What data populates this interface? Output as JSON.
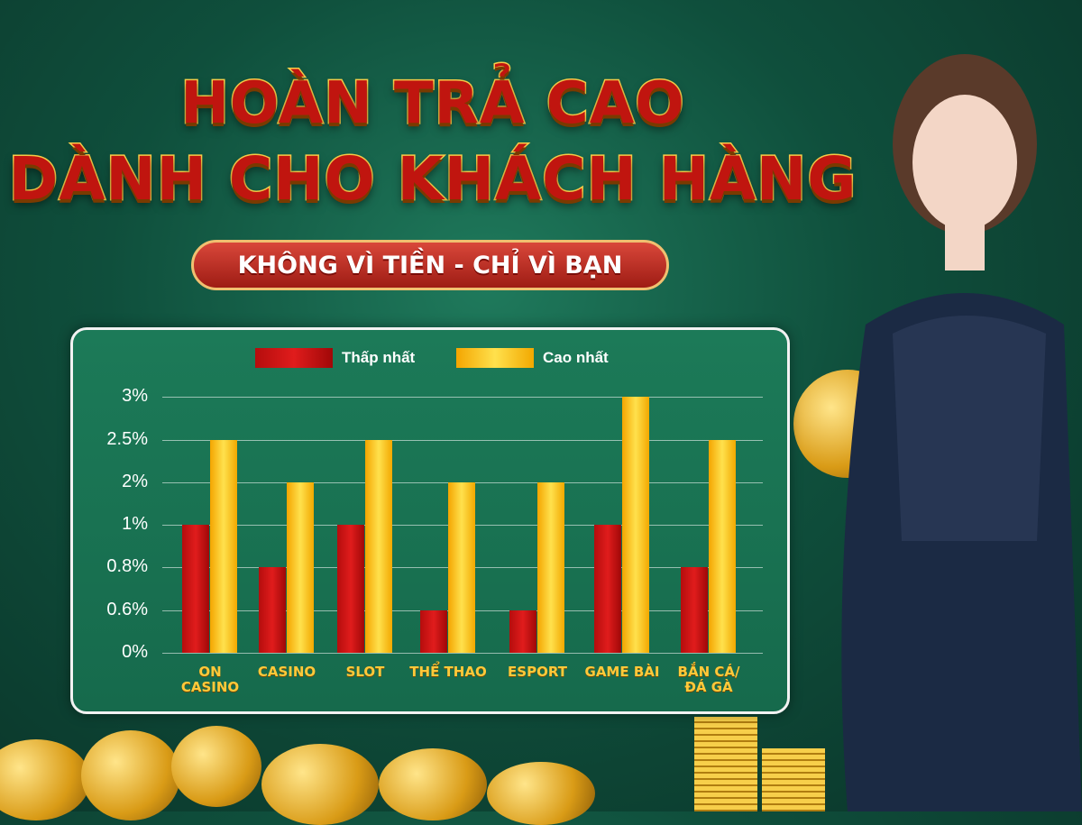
{
  "header": {
    "title_line1": "HOÀN TRẢ CAO",
    "title_line2": "DÀNH CHO KHÁCH HÀNG",
    "ribbon": "KHÔNG VÌ TIỀN - CHỈ VÌ BẠN"
  },
  "colors": {
    "min_series": "#d01414",
    "max_series": "#ffc61a",
    "background": "#0f4f3c"
  },
  "chart_data": {
    "type": "bar",
    "categories": [
      "ON CASINO",
      "CASINO",
      "SLOT",
      "THỂ THAO",
      "ESPORT",
      "GAME BÀI",
      "BẮN CÁ/ ĐÁ GÀ"
    ],
    "y_ticks": [
      "0%",
      "0.6%",
      "0.8%",
      "1%",
      "2%",
      "2.5%",
      "3%"
    ],
    "y_scale": "categorical (evenly spaced tick labels)",
    "series": [
      {
        "name": "Thấp nhất",
        "values": [
          "1%",
          "0.8%",
          "1%",
          "0.6%",
          "0.6%",
          "1%",
          "0.8%"
        ]
      },
      {
        "name": "Cao nhất",
        "values": [
          "2.5%",
          "2%",
          "2.5%",
          "2%",
          "2%",
          "3%",
          "2.5%"
        ]
      }
    ],
    "grid": true,
    "legend": "top"
  }
}
